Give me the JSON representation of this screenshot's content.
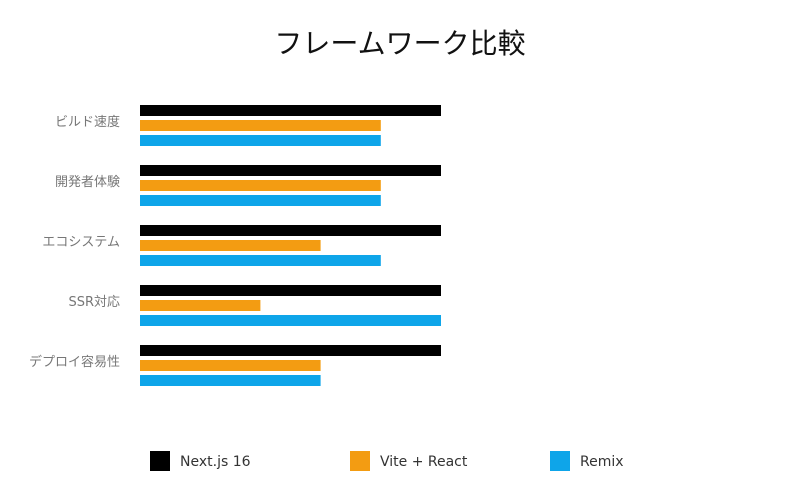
{
  "chart_data": {
    "type": "bar",
    "orientation": "horizontal",
    "title": "フレームワーク比較",
    "categories": [
      "ビルド速度",
      "開発者体験",
      "エコシステム",
      "SSR対応",
      "デプロイ容易性"
    ],
    "series": [
      {
        "name": "Next.js 16",
        "color": "#000000",
        "values": [
          5,
          5,
          5,
          5,
          5
        ]
      },
      {
        "name": "Vite + React",
        "color": "#f39c12",
        "values": [
          4,
          4,
          3,
          2,
          3
        ]
      },
      {
        "name": "Remix",
        "color": "#0ea5e9",
        "values": [
          4,
          4,
          4,
          5,
          3
        ]
      }
    ],
    "xlim": [
      0,
      5
    ],
    "xlabel": "",
    "ylabel": "",
    "grid": false,
    "legend_position": "bottom"
  }
}
